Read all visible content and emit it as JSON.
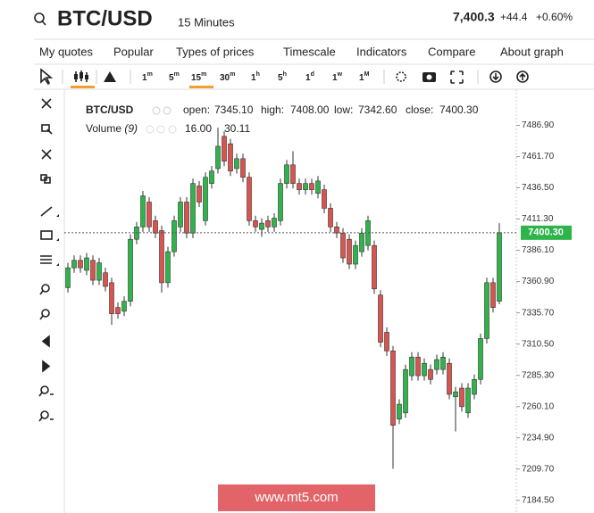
{
  "header": {
    "symbol": "BTC/USD",
    "timeframe": "15 Minutes",
    "price": "7,400.3",
    "change": "+44.4",
    "change_pct": "+0.60%"
  },
  "menu": [
    "My quotes",
    "Popular",
    "Types of prices",
    "Timescale",
    "Indicators",
    "Compare",
    "About graph"
  ],
  "timeframes": [
    {
      "n": "1",
      "u": "m"
    },
    {
      "n": "5",
      "u": "m"
    },
    {
      "n": "15",
      "u": "m"
    },
    {
      "n": "30",
      "u": "m"
    },
    {
      "n": "1",
      "u": "h"
    },
    {
      "n": "5",
      "u": "h"
    },
    {
      "n": "1",
      "u": "d"
    },
    {
      "n": "1",
      "u": "w"
    },
    {
      "n": "1",
      "u": "M"
    }
  ],
  "legend": {
    "symbol": "BTC/USD",
    "open_label": "open:",
    "open": "7345.10",
    "high_label": "high:",
    "high": "7408.00",
    "low_label": "low:",
    "low": "7342.60",
    "close_label": "close:",
    "close": "7400.30",
    "volume_label": "Volume",
    "volume_period": "(9)",
    "volume_1": "16.00",
    "volume_2": "30.11"
  },
  "watermark": "www.mt5.com",
  "chart_data": {
    "type": "candlestick",
    "up_color": "#2fb34b",
    "down_color": "#d9534f",
    "ylim": [
      7174.3,
      7516
    ],
    "yticks": [
      {
        "value": 7486.9,
        "label": "7486.90"
      },
      {
        "value": 7461.7,
        "label": "7461.70"
      },
      {
        "value": 7436.5,
        "label": "7436.50"
      },
      {
        "value": 7411.3,
        "label": "7411.30"
      },
      {
        "value": 7386.1,
        "label": "7386.10"
      },
      {
        "value": 7360.9,
        "label": "7360.90"
      },
      {
        "value": 7335.7,
        "label": "7335.70"
      },
      {
        "value": 7310.5,
        "label": "7310.50"
      },
      {
        "value": 7285.3,
        "label": "7285.30"
      },
      {
        "value": 7260.1,
        "label": "7260.10"
      },
      {
        "value": 7234.9,
        "label": "7234.90"
      },
      {
        "value": 7209.7,
        "label": "7209.70"
      },
      {
        "value": 7184.5,
        "label": "7184.50"
      }
    ],
    "current_price": {
      "value": 7400.3,
      "label": "7400.30"
    },
    "open": [
      7356,
      7372,
      7378,
      7370,
      7378,
      7362,
      7368,
      7360,
      7340,
      7337,
      7345,
      7395,
      7405,
      7425,
      7410,
      7402,
      7360,
      7385,
      7405,
      7425,
      7400,
      7438,
      7410,
      7440,
      7452,
      7478,
      7472,
      7452,
      7460,
      7445,
      7410,
      7403,
      7410,
      7405,
      7410,
      7440,
      7455,
      7440,
      7435,
      7440,
      7432,
      7435,
      7420,
      7405,
      7400,
      7395,
      7375,
      7385,
      7390,
      7390,
      7350,
      7320,
      7305,
      7250,
      7255,
      7285,
      7300,
      7285,
      7290,
      7290,
      7290,
      7295,
      7268,
      7275,
      7255,
      7270,
      7282,
      7315,
      7360,
      7345.1
    ],
    "high": [
      7376,
      7382,
      7382,
      7384,
      7382,
      7380,
      7372,
      7364,
      7344,
      7349,
      7399,
      7409,
      7434,
      7429,
      7414,
      7406,
      7389,
      7414,
      7429,
      7429,
      7444,
      7442,
      7449,
      7454,
      7485,
      7482,
      7476,
      7464,
      7464,
      7449,
      7414,
      7412,
      7414,
      7416,
      7444,
      7459,
      7466,
      7444,
      7444,
      7444,
      7446,
      7439,
      7424,
      7409,
      7404,
      7399,
      7394,
      7404,
      7414,
      7394,
      7354,
      7324,
      7309,
      7266,
      7294,
      7304,
      7304,
      7299,
      7294,
      7302,
      7304,
      7299,
      7276,
      7279,
      7279,
      7286,
      7319,
      7364,
      7364,
      7408
    ],
    "low": [
      7352,
      7368,
      7368,
      7366,
      7358,
      7358,
      7353,
      7326,
      7331,
      7333,
      7341,
      7391,
      7401,
      7401,
      7396,
      7352,
      7356,
      7381,
      7401,
      7396,
      7396,
      7421,
      7406,
      7436,
      7448,
      7454,
      7446,
      7448,
      7441,
      7406,
      7401,
      7397,
      7401,
      7401,
      7406,
      7436,
      7436,
      7431,
      7431,
      7431,
      7428,
      7416,
      7401,
      7396,
      7376,
      7371,
      7371,
      7381,
      7386,
      7351,
      7308,
      7301,
      7210,
      7246,
      7251,
      7281,
      7281,
      7281,
      7278,
      7286,
      7286,
      7266,
      7240,
      7256,
      7251,
      7266,
      7278,
      7311,
      7336,
      7342.6
    ],
    "close": [
      7372,
      7378,
      7372,
      7380,
      7362,
      7376,
      7357,
      7335,
      7335,
      7345,
      7395,
      7405,
      7430,
      7405,
      7400,
      7360,
      7385,
      7410,
      7425,
      7400,
      7440,
      7425,
      7445,
      7450,
      7470,
      7458,
      7450,
      7460,
      7445,
      7410,
      7405,
      7408,
      7405,
      7412,
      7440,
      7455,
      7440,
      7435,
      7440,
      7435,
      7442,
      7420,
      7405,
      7400,
      7380,
      7375,
      7390,
      7400,
      7410,
      7355,
      7312,
      7305,
      7245,
      7262,
      7290,
      7300,
      7285,
      7295,
      7282,
      7298,
      7300,
      7270,
      7272,
      7260,
      7275,
      7282,
      7315,
      7360,
      7340,
      7400.3
    ]
  }
}
